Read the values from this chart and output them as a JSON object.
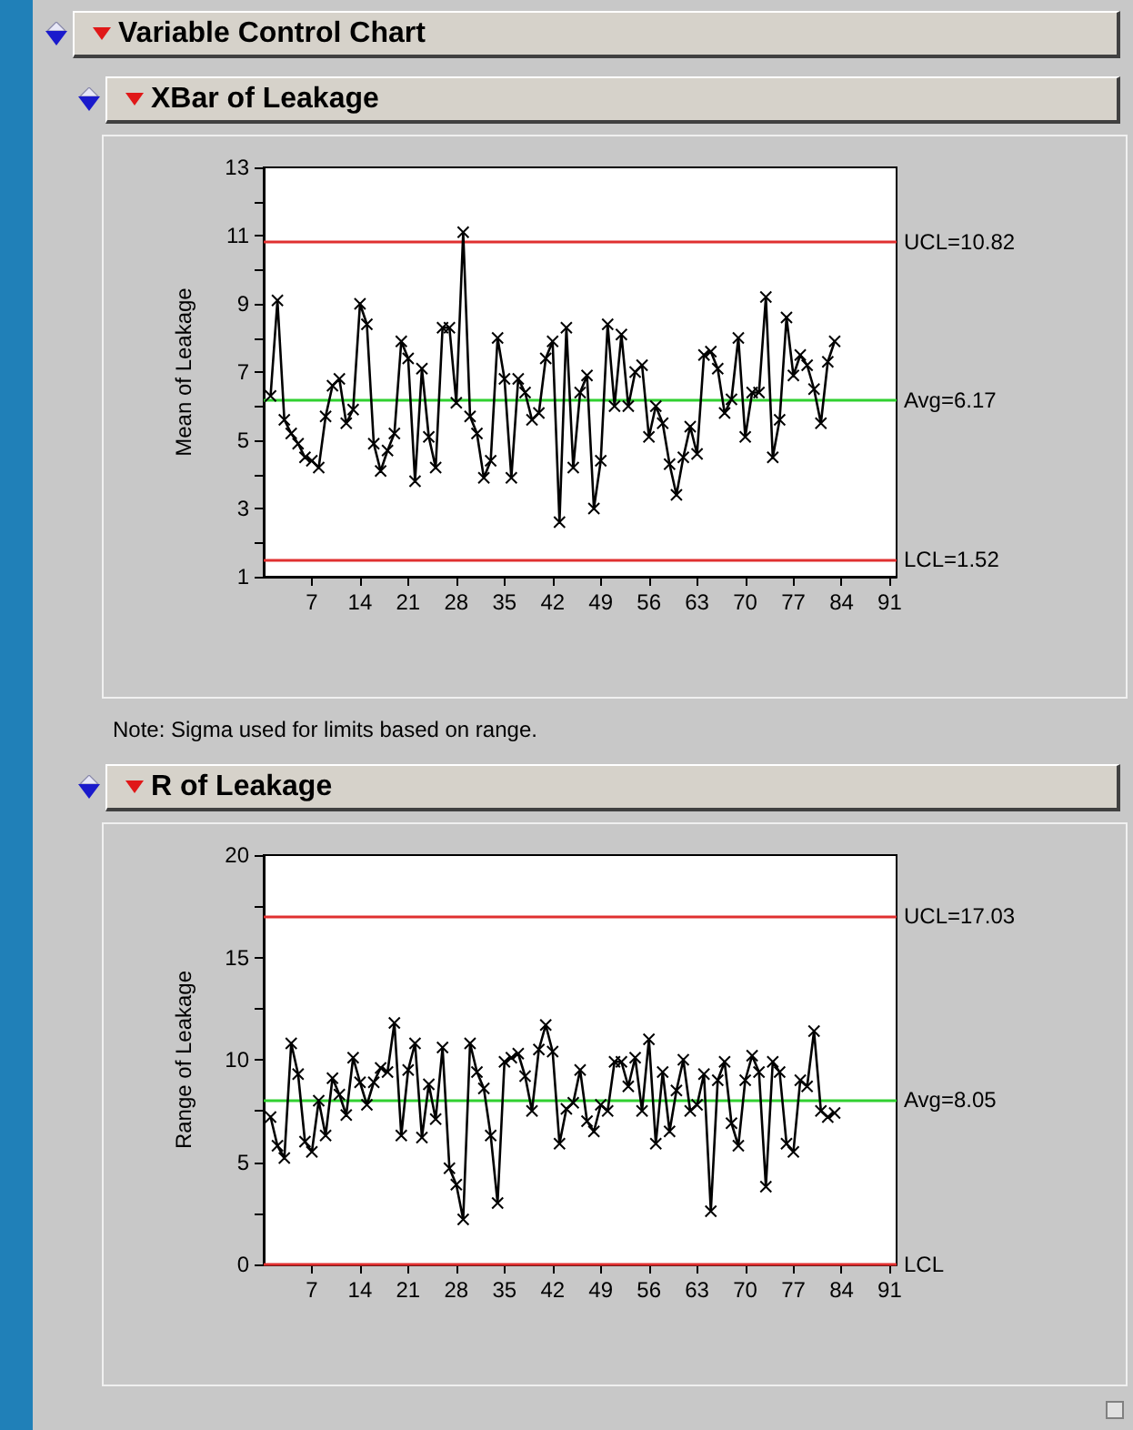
{
  "chart_data": [
    {
      "type": "line",
      "title": "Variable Control Chart",
      "subtitle": "XBar of Leakage",
      "ylabel": "Mean of Leakage",
      "annotations": [
        "Note: Sigma used for limits based on range."
      ],
      "x": [
        1,
        2,
        3,
        4,
        5,
        6,
        7,
        8,
        9,
        10,
        11,
        12,
        13,
        14,
        15,
        16,
        17,
        18,
        19,
        20,
        21,
        22,
        23,
        24,
        25,
        26,
        27,
        28,
        29,
        30,
        31,
        32,
        33,
        34,
        35,
        36,
        37,
        38,
        39,
        40,
        41,
        42,
        43,
        44,
        45,
        46,
        47,
        48,
        49,
        50,
        51,
        52,
        53,
        54,
        55,
        56,
        57,
        58,
        59,
        60,
        61,
        62,
        63,
        64,
        65,
        66,
        67,
        68,
        69,
        70,
        71,
        72,
        73,
        74,
        75,
        76,
        77,
        78,
        79,
        80,
        81,
        82,
        83
      ],
      "series": [
        {
          "color": "#000000",
          "values": [
            6.3,
            9.1,
            5.6,
            5.2,
            4.9,
            4.5,
            4.4,
            4.2,
            5.7,
            6.6,
            6.8,
            5.5,
            5.9,
            9.0,
            8.4,
            4.9,
            4.1,
            4.7,
            5.2,
            7.9,
            7.4,
            3.8,
            7.1,
            5.1,
            4.2,
            8.3,
            8.3,
            6.1,
            11.1,
            5.7,
            5.2,
            3.9,
            4.4,
            8.0,
            6.8,
            3.9,
            6.8,
            6.4,
            5.6,
            5.8,
            7.4,
            7.9,
            2.6,
            8.3,
            4.2,
            6.4,
            6.9,
            3.0,
            4.4,
            8.4,
            6.0,
            8.1,
            6.0,
            7.0,
            7.2,
            5.1,
            6.0,
            5.5,
            4.3,
            3.4,
            4.5,
            5.4,
            4.6,
            7.5,
            7.6,
            7.1,
            5.8,
            6.2,
            8.0,
            5.1,
            6.4,
            6.4,
            9.2,
            4.5,
            5.6,
            8.6,
            6.9,
            7.5,
            7.2,
            6.5,
            5.5,
            7.3,
            7.9
          ]
        }
      ],
      "xlim": [
        0,
        92
      ],
      "xticks": [
        7,
        14,
        21,
        28,
        35,
        42,
        49,
        56,
        63,
        70,
        77,
        84,
        91
      ],
      "ylim": [
        1,
        13
      ],
      "yticks": [
        1,
        {
          "value": 2,
          "label": null
        },
        3,
        {
          "value": 4,
          "label": null
        },
        5,
        {
          "value": 6,
          "label": null
        },
        7,
        {
          "value": 8,
          "label": null
        },
        9,
        {
          "value": 10,
          "label": null
        },
        11,
        {
          "value": 12,
          "label": null
        },
        13
      ],
      "ref_lines": [
        {
          "axis": "y",
          "value": 10.82,
          "label": "UCL=10.82",
          "color": "#e03030"
        },
        {
          "axis": "y",
          "value": 6.17,
          "label": "Avg=6.17",
          "color": "#30d030"
        },
        {
          "axis": "y",
          "value": 1.52,
          "label": "LCL=1.52",
          "color": "#e03030"
        }
      ],
      "marker": "cross",
      "line_style": "solid",
      "grid": false
    },
    {
      "type": "line",
      "title": "R of Leakage",
      "ylabel": "Range of Leakage",
      "x": [
        1,
        2,
        3,
        4,
        5,
        6,
        7,
        8,
        9,
        10,
        11,
        12,
        13,
        14,
        15,
        16,
        17,
        18,
        19,
        20,
        21,
        22,
        23,
        24,
        25,
        26,
        27,
        28,
        29,
        30,
        31,
        32,
        33,
        34,
        35,
        36,
        37,
        38,
        39,
        40,
        41,
        42,
        43,
        44,
        45,
        46,
        47,
        48,
        49,
        50,
        51,
        52,
        53,
        54,
        55,
        56,
        57,
        58,
        59,
        60,
        61,
        62,
        63,
        64,
        65,
        66,
        67,
        68,
        69,
        70,
        71,
        72,
        73,
        74,
        75,
        76,
        77,
        78,
        79,
        80,
        81,
        82,
        83
      ],
      "series": [
        {
          "color": "#000000",
          "values": [
            7.2,
            5.8,
            5.2,
            10.8,
            9.3,
            6.0,
            5.5,
            8.0,
            6.3,
            9.1,
            8.3,
            7.3,
            10.1,
            8.9,
            7.8,
            8.9,
            9.6,
            9.4,
            11.8,
            6.3,
            9.5,
            10.8,
            6.2,
            8.8,
            7.1,
            10.6,
            4.7,
            3.9,
            2.2,
            10.8,
            9.4,
            8.6,
            6.3,
            3.0,
            9.9,
            10.1,
            10.3,
            9.2,
            7.5,
            10.5,
            11.7,
            10.4,
            5.9,
            7.6,
            7.9,
            9.5,
            7.0,
            6.5,
            7.8,
            7.5,
            9.9,
            9.9,
            8.7,
            10.1,
            7.5,
            11.0,
            5.9,
            9.4,
            6.5,
            8.5,
            10.0,
            7.5,
            7.8,
            9.3,
            2.6,
            9.0,
            9.9,
            6.9,
            5.8,
            9.0,
            10.2,
            9.4,
            3.8,
            9.9,
            9.4,
            5.9,
            5.5,
            9.0,
            8.7,
            11.4,
            7.5,
            7.2,
            7.4
          ]
        }
      ],
      "xlim": [
        0,
        92
      ],
      "xticks": [
        7,
        14,
        21,
        28,
        35,
        42,
        49,
        56,
        63,
        70,
        77,
        84,
        91
      ],
      "ylim": [
        0,
        20
      ],
      "yticks": [
        0,
        {
          "value": 2.5,
          "label": null
        },
        5,
        {
          "value": 7.5,
          "label": null
        },
        10,
        {
          "value": 12.5,
          "label": null
        },
        15,
        {
          "value": 17.5,
          "label": null
        },
        20
      ],
      "ref_lines": [
        {
          "axis": "y",
          "value": 17.03,
          "label": "UCL=17.03",
          "color": "#e03030"
        },
        {
          "axis": "y",
          "value": 8.05,
          "label": "Avg=8.05",
          "color": "#30d030"
        },
        {
          "axis": "y",
          "value": 0,
          "label": "LCL",
          "color": "#e03030"
        }
      ],
      "marker": "cross",
      "line_style": "solid",
      "grid": false
    }
  ]
}
